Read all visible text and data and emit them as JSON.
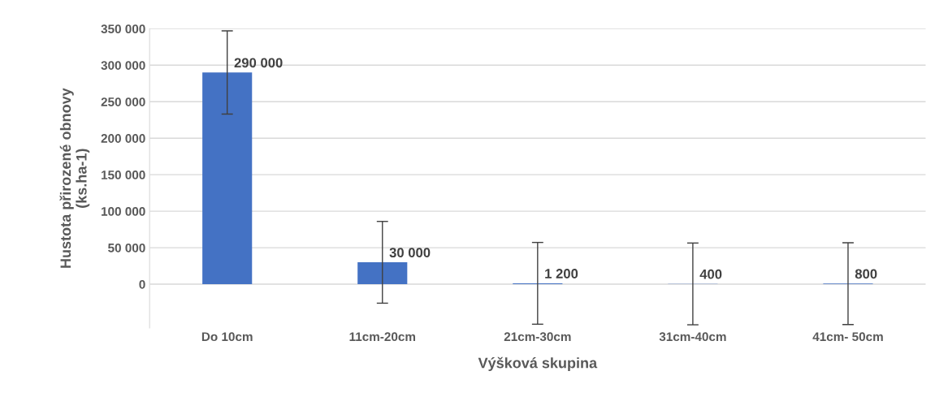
{
  "chart_data": {
    "type": "bar",
    "xlabel": "Výšková skupina",
    "ylabel": "Hustota přirozené obnovy\n(ks.ha-1)",
    "categories": [
      "Do 10cm",
      "11cm-20cm",
      "21cm-30cm",
      "31cm-40cm",
      "41cm- 50cm"
    ],
    "values": [
      290000,
      30000,
      1200,
      400,
      800
    ],
    "value_labels": [
      "290 000",
      "30 000",
      "1 200",
      "400",
      "800"
    ],
    "errors": [
      57000,
      56000,
      56000,
      56000,
      56000
    ],
    "color": "#4472c4",
    "ylim": [
      -60000,
      350000
    ],
    "yticks": [
      {
        "value": 0,
        "label": "0"
      },
      {
        "value": 50000,
        "label": "50 000"
      },
      {
        "value": 100000,
        "label": "100 000"
      },
      {
        "value": 150000,
        "label": "150 000"
      },
      {
        "value": 200000,
        "label": "200 000"
      },
      {
        "value": 250000,
        "label": "250 000"
      },
      {
        "value": 300000,
        "label": "300 000"
      },
      {
        "value": 350000,
        "label": "350 000"
      }
    ],
    "grid": "y",
    "legend": false
  }
}
